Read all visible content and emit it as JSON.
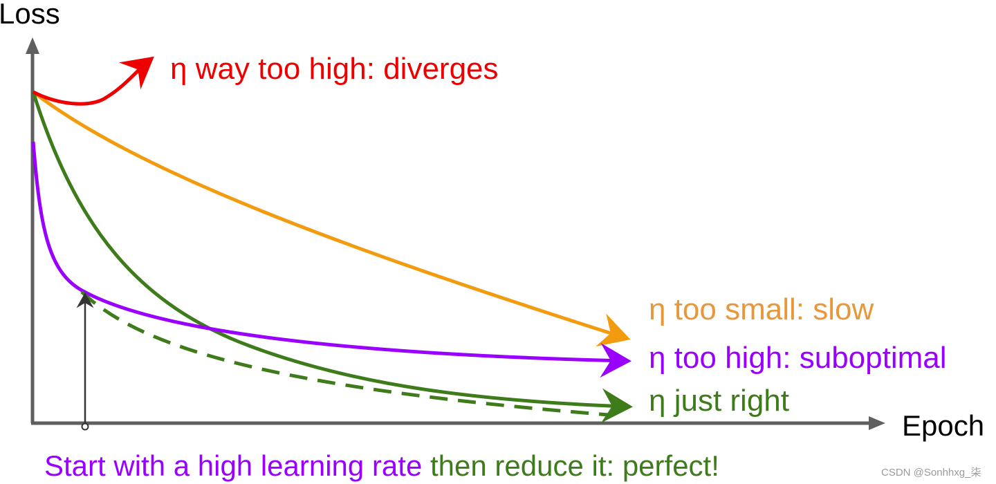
{
  "axes": {
    "y_label": "Loss",
    "x_label": "Epoch",
    "axis_color": "#5f5f5f"
  },
  "curves": [
    {
      "id": "way-too-high",
      "label": "η way too high: diverges",
      "color": "#ee0000",
      "style": "solid"
    },
    {
      "id": "too-small",
      "label": "η too small: slow",
      "color": "#f39b0f",
      "label_color": "#e8973a",
      "style": "solid"
    },
    {
      "id": "too-high",
      "label": "η too high: suboptimal",
      "color": "#9a00ff",
      "style": "solid"
    },
    {
      "id": "just-right",
      "label": "η just right",
      "color": "#3e7b1b",
      "style": "solid"
    },
    {
      "id": "schedule",
      "color": "#3e7b1b",
      "style": "dashed"
    }
  ],
  "caption": {
    "part1": "Start with a high learning rate",
    "part1_color": "#9a00ff",
    "part2": " then reduce it: perfect!",
    "part2_color": "#3e7b1b"
  },
  "watermark": "CSDN @Sonhhxg_柒"
}
